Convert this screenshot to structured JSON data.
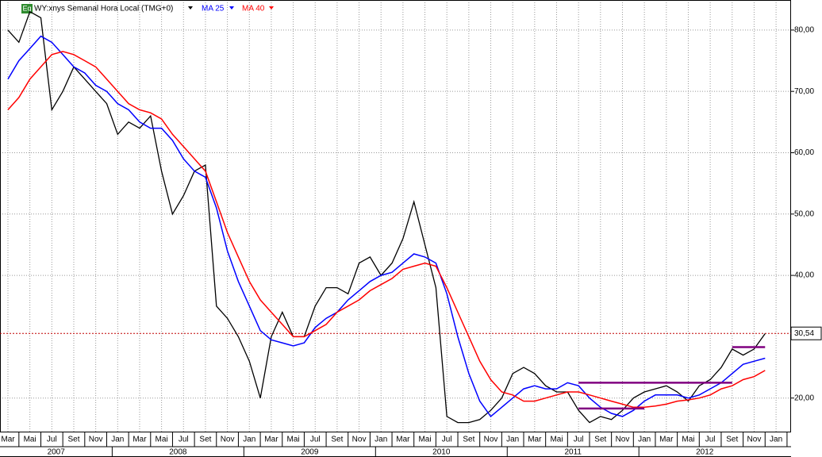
{
  "chart_data": {
    "type": "line",
    "title": "WY:xnys Semanal Hora Local (TMG+0)",
    "badge": "Eq",
    "categories": [
      "Mar",
      null,
      "Mai",
      null,
      "Jul",
      null,
      "Set",
      null,
      "Nov",
      null,
      "Jan",
      null,
      "Mar",
      null,
      "Mai",
      null,
      "Jul",
      null,
      "Set",
      null,
      "Nov",
      null,
      "Jan",
      null,
      "Mar",
      null,
      "Mai",
      null,
      "Jul",
      null,
      "Set",
      null,
      "Nov",
      null,
      "Jan",
      null,
      "Mar",
      null,
      "Mai",
      null,
      "Jul",
      null,
      "Set",
      null,
      "Nov",
      null,
      "Jan",
      null,
      "Mar",
      null,
      "Mai",
      null,
      "Jul",
      null,
      "Set",
      null,
      "Nov",
      null,
      "Jan",
      null,
      "Mar",
      null,
      "Mai",
      null,
      "Jul",
      null,
      "Set",
      null,
      "Nov",
      null,
      "Jan"
    ],
    "years": [
      "2007",
      "2008",
      "2009",
      "2010",
      "2011",
      "2012"
    ],
    "series": [
      {
        "name": null,
        "color": "#000000",
        "values": [
          80,
          78,
          83,
          82,
          67,
          70,
          74,
          72,
          70,
          68,
          63,
          65,
          64,
          66,
          57,
          50,
          53,
          57,
          58,
          35,
          33,
          30,
          26,
          20,
          30,
          34,
          30,
          30,
          35,
          38,
          38,
          37,
          42,
          43,
          40,
          42,
          46,
          52,
          45,
          38,
          17,
          16,
          16,
          16.5,
          18,
          20,
          24,
          25,
          24,
          22,
          21,
          21,
          18,
          16,
          17,
          16.5,
          18,
          20,
          21,
          21.5,
          22,
          21,
          19.5,
          22,
          23,
          25,
          28,
          27,
          28,
          30.5,
          null
        ]
      },
      {
        "name": "MA 25",
        "color": "#0000ff",
        "values": [
          72,
          75,
          77,
          79,
          78,
          76,
          74,
          73,
          71,
          70,
          68,
          67,
          65,
          64,
          64,
          62,
          59,
          57,
          56,
          51,
          44,
          39,
          35,
          31,
          29.5,
          29,
          28.5,
          29,
          31.5,
          33,
          34,
          36,
          37.5,
          39,
          40,
          40.5,
          42,
          43.5,
          43,
          42,
          37,
          30,
          24,
          19.5,
          17,
          18.5,
          20,
          21.5,
          22,
          21.5,
          21.5,
          22.5,
          22,
          20,
          18.5,
          17.5,
          17,
          18,
          19.5,
          20.5,
          20.5,
          20.5,
          20,
          20.5,
          21.5,
          22.5,
          24,
          25.5,
          26,
          26.5,
          null
        ]
      },
      {
        "name": "MA 40",
        "color": "#ff0000",
        "values": [
          67,
          69,
          72,
          74,
          76,
          76.5,
          76,
          75,
          74,
          72,
          70,
          68,
          67,
          66.5,
          65.5,
          63,
          61,
          59,
          57,
          52,
          47,
          43,
          39,
          36,
          34,
          32,
          30,
          30,
          31,
          32,
          34,
          35,
          36,
          37.5,
          38.5,
          39.5,
          41,
          41.5,
          42,
          41.5,
          38,
          34,
          30,
          26,
          23,
          21,
          20.5,
          19.5,
          19.5,
          20,
          20.5,
          21,
          21,
          20.5,
          20,
          19.5,
          19,
          18.5,
          18.5,
          18.7,
          19,
          19.5,
          19.7,
          20,
          20.5,
          21.5,
          22,
          23,
          23.5,
          24.5,
          null
        ]
      }
    ],
    "last_price": {
      "value": 30.54,
      "label": "30,54"
    },
    "levels": [
      22.5,
      18.3,
      28.3
    ],
    "level_color": "#800080",
    "ylim": [
      14.4,
      84.9
    ],
    "yticks": [
      {
        "value": 20,
        "label": "20,00"
      },
      {
        "value": 40,
        "label": "40,00"
      },
      {
        "value": 50,
        "label": "50,00"
      },
      {
        "value": 60,
        "label": "60,00"
      },
      {
        "value": 70,
        "label": "70,00"
      },
      {
        "value": 80,
        "label": "80,00"
      }
    ],
    "grid": true
  }
}
